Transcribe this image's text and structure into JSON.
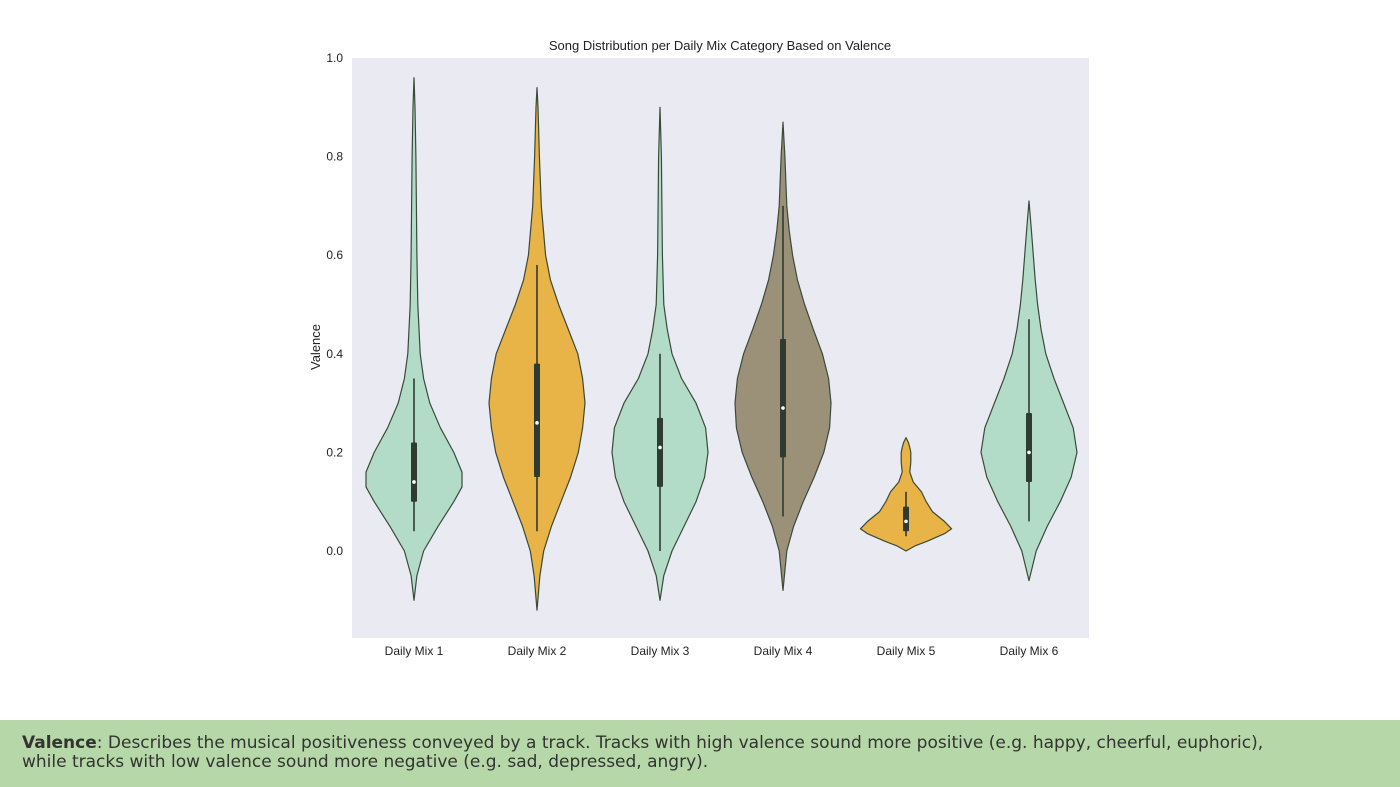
{
  "chart_data": {
    "type": "violin",
    "title": "Song Distribution per Daily Mix Category Based on Valence",
    "xlabel": "",
    "ylabel": "Valence",
    "ylim": [
      -0.17,
      1.0
    ],
    "yticks": [
      "0.0",
      "0.2",
      "0.4",
      "0.6",
      "0.8",
      "1.0"
    ],
    "grid": false,
    "categories": [
      "Daily Mix 1",
      "Daily Mix 2",
      "Daily Mix 3",
      "Daily Mix 4",
      "Daily Mix 5",
      "Daily Mix 6"
    ],
    "series": [
      {
        "category": "Daily Mix 1",
        "color": "#b3dcc8",
        "min": -0.1,
        "max": 0.96,
        "q1": 0.1,
        "median": 0.14,
        "q3": 0.22,
        "whisker_low": 0.04,
        "whisker_high": 0.35,
        "density": [
          [
            -0.1,
            0.0
          ],
          [
            -0.05,
            0.06
          ],
          [
            0.0,
            0.2
          ],
          [
            0.05,
            0.5
          ],
          [
            0.1,
            0.83
          ],
          [
            0.13,
            1.0
          ],
          [
            0.16,
            1.0
          ],
          [
            0.2,
            0.83
          ],
          [
            0.25,
            0.55
          ],
          [
            0.3,
            0.33
          ],
          [
            0.35,
            0.2
          ],
          [
            0.4,
            0.13
          ],
          [
            0.5,
            0.08
          ],
          [
            0.6,
            0.06
          ],
          [
            0.7,
            0.05
          ],
          [
            0.8,
            0.04
          ],
          [
            0.9,
            0.02
          ],
          [
            0.96,
            0.0
          ]
        ]
      },
      {
        "category": "Daily Mix 2",
        "color": "#e8b347",
        "min": -0.12,
        "max": 0.94,
        "q1": 0.15,
        "median": 0.26,
        "q3": 0.38,
        "whisker_low": 0.04,
        "whisker_high": 0.58,
        "density": [
          [
            -0.12,
            0.0
          ],
          [
            -0.05,
            0.06
          ],
          [
            0.0,
            0.14
          ],
          [
            0.05,
            0.3
          ],
          [
            0.1,
            0.5
          ],
          [
            0.15,
            0.7
          ],
          [
            0.2,
            0.86
          ],
          [
            0.25,
            0.95
          ],
          [
            0.3,
            1.0
          ],
          [
            0.35,
            0.95
          ],
          [
            0.4,
            0.85
          ],
          [
            0.45,
            0.65
          ],
          [
            0.5,
            0.45
          ],
          [
            0.55,
            0.28
          ],
          [
            0.6,
            0.18
          ],
          [
            0.7,
            0.09
          ],
          [
            0.8,
            0.05
          ],
          [
            0.9,
            0.02
          ],
          [
            0.94,
            0.0
          ]
        ]
      },
      {
        "category": "Daily Mix 3",
        "color": "#b3dcc8",
        "min": -0.1,
        "max": 0.9,
        "q1": 0.13,
        "median": 0.21,
        "q3": 0.27,
        "whisker_low": 0.0,
        "whisker_high": 0.4,
        "density": [
          [
            -0.1,
            0.0
          ],
          [
            -0.05,
            0.08
          ],
          [
            0.0,
            0.25
          ],
          [
            0.05,
            0.5
          ],
          [
            0.1,
            0.75
          ],
          [
            0.15,
            0.93
          ],
          [
            0.2,
            1.0
          ],
          [
            0.25,
            0.95
          ],
          [
            0.3,
            0.75
          ],
          [
            0.35,
            0.45
          ],
          [
            0.4,
            0.25
          ],
          [
            0.45,
            0.15
          ],
          [
            0.5,
            0.08
          ],
          [
            0.6,
            0.05
          ],
          [
            0.7,
            0.04
          ],
          [
            0.8,
            0.03
          ],
          [
            0.9,
            0.0
          ]
        ]
      },
      {
        "category": "Daily Mix 4",
        "color": "#9b9179",
        "min": -0.08,
        "max": 0.87,
        "q1": 0.19,
        "median": 0.29,
        "q3": 0.43,
        "whisker_low": 0.07,
        "whisker_high": 0.7,
        "density": [
          [
            -0.08,
            0.0
          ],
          [
            0.0,
            0.08
          ],
          [
            0.05,
            0.22
          ],
          [
            0.1,
            0.42
          ],
          [
            0.15,
            0.65
          ],
          [
            0.2,
            0.85
          ],
          [
            0.25,
            0.97
          ],
          [
            0.3,
            1.0
          ],
          [
            0.35,
            0.95
          ],
          [
            0.4,
            0.82
          ],
          [
            0.45,
            0.63
          ],
          [
            0.5,
            0.45
          ],
          [
            0.55,
            0.3
          ],
          [
            0.6,
            0.2
          ],
          [
            0.65,
            0.13
          ],
          [
            0.7,
            0.08
          ],
          [
            0.8,
            0.04
          ],
          [
            0.87,
            0.0
          ]
        ]
      },
      {
        "category": "Daily Mix 5",
        "color": "#e8b347",
        "min": 0.0,
        "max": 0.23,
        "q1": 0.04,
        "median": 0.06,
        "q3": 0.09,
        "whisker_low": 0.03,
        "whisker_high": 0.12,
        "density": [
          [
            0.0,
            0.0
          ],
          [
            0.01,
            0.18
          ],
          [
            0.02,
            0.45
          ],
          [
            0.035,
            0.8
          ],
          [
            0.045,
            0.95
          ],
          [
            0.06,
            0.8
          ],
          [
            0.08,
            0.55
          ],
          [
            0.1,
            0.42
          ],
          [
            0.12,
            0.32
          ],
          [
            0.14,
            0.15
          ],
          [
            0.16,
            0.08
          ],
          [
            0.18,
            0.1
          ],
          [
            0.2,
            0.1
          ],
          [
            0.21,
            0.08
          ],
          [
            0.22,
            0.05
          ],
          [
            0.23,
            0.0
          ]
        ]
      },
      {
        "category": "Daily Mix 6",
        "color": "#b3dcc8",
        "min": -0.06,
        "max": 0.71,
        "q1": 0.14,
        "median": 0.2,
        "q3": 0.28,
        "whisker_low": 0.06,
        "whisker_high": 0.47,
        "density": [
          [
            -0.06,
            0.0
          ],
          [
            0.0,
            0.15
          ],
          [
            0.05,
            0.38
          ],
          [
            0.1,
            0.65
          ],
          [
            0.15,
            0.88
          ],
          [
            0.2,
            1.0
          ],
          [
            0.25,
            0.92
          ],
          [
            0.3,
            0.72
          ],
          [
            0.35,
            0.52
          ],
          [
            0.4,
            0.35
          ],
          [
            0.45,
            0.25
          ],
          [
            0.5,
            0.18
          ],
          [
            0.55,
            0.13
          ],
          [
            0.6,
            0.09
          ],
          [
            0.65,
            0.05
          ],
          [
            0.71,
            0.0
          ]
        ]
      }
    ]
  },
  "caption": {
    "term": "Valence",
    "line1": ": Describes the musical positiveness conveyed by a track. Tracks with high valence sound more positive (e.g. happy, cheerful, euphoric),",
    "line2": "while tracks with low valence sound more negative (e.g. sad, depressed, angry)."
  }
}
